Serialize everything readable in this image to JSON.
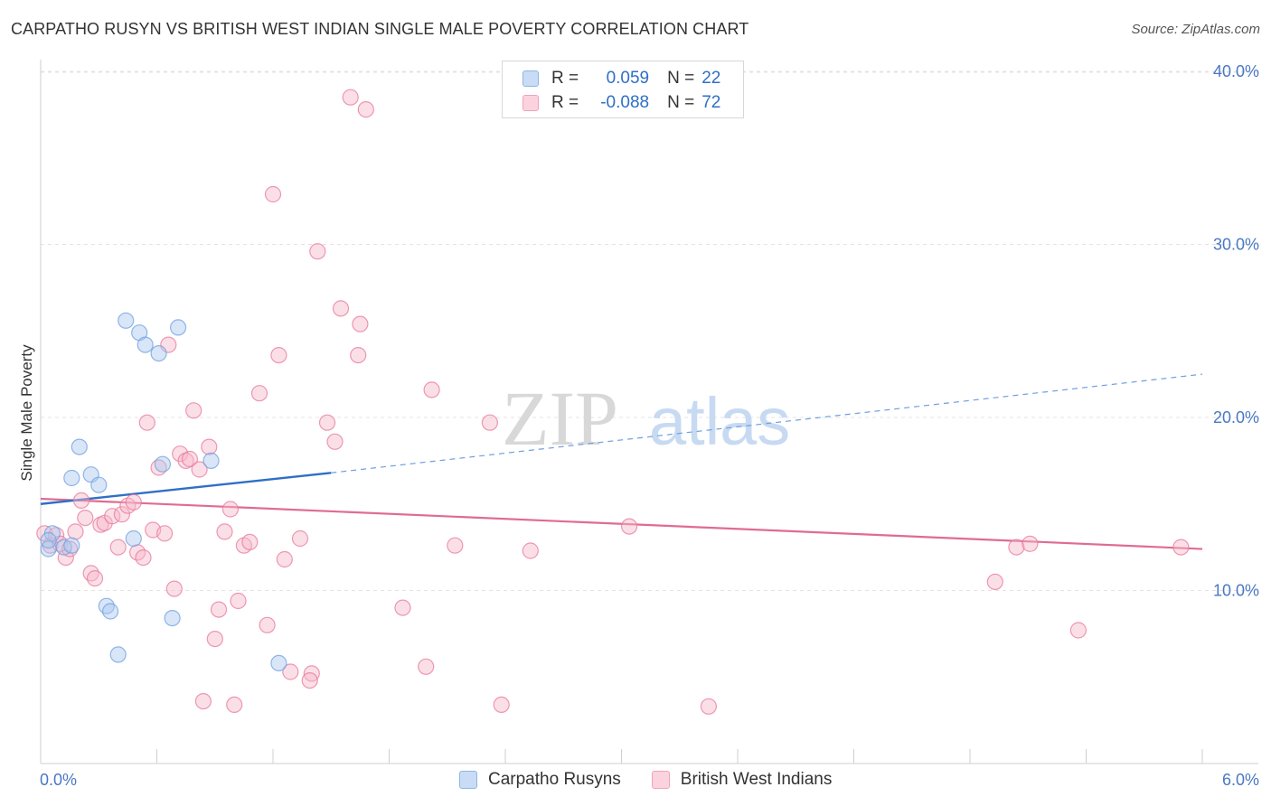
{
  "title": "CARPATHO RUSYN VS BRITISH WEST INDIAN SINGLE MALE POVERTY CORRELATION CHART",
  "source": "Source: ZipAtlas.com",
  "watermark": {
    "zip": "ZIP",
    "atlas": "atlas"
  },
  "legend": {
    "rows": [
      {
        "r_label": "R =",
        "r_value": "0.059",
        "n_label": "N =",
        "n_value": "22",
        "color": "#a9c8f0"
      },
      {
        "r_label": "R =",
        "r_value": "-0.088",
        "n_label": "N =",
        "n_value": "72",
        "color": "#f6b8ca"
      }
    ]
  },
  "bottom_legend": [
    {
      "label": "Carpatho Rusyns",
      "color": "#a9c8f0"
    },
    {
      "label": "British West Indians",
      "color": "#f6b8ca"
    }
  ],
  "chart_data": {
    "type": "scatter",
    "title": "CARPATHO RUSYN VS BRITISH WEST INDIAN SINGLE MALE POVERTY CORRELATION CHART",
    "xlabel": "",
    "ylabel": "Single Male Poverty",
    "xlim": [
      0.0,
      6.0
    ],
    "ylim": [
      0.0,
      40.0
    ],
    "x_tick_labels": [
      "0.0%",
      "6.0%"
    ],
    "y_ticks": [
      10,
      20,
      30,
      40
    ],
    "y_tick_labels": [
      "10.0%",
      "20.0%",
      "30.0%",
      "40.0%"
    ],
    "grid": "horizontal dashed",
    "legend_position": "top-center",
    "series": [
      {
        "name": "Carpatho Rusyns",
        "color": "#6f9fe0",
        "fill": "#a9c8f0",
        "trend": {
          "x": [
            0.0,
            1.5
          ],
          "y": [
            15.0,
            16.8
          ],
          "dashed_extension": {
            "x": [
              1.5,
              6.0
            ],
            "y": [
              16.8,
              22.5
            ]
          }
        },
        "points": [
          [
            0.04,
            12.4
          ],
          [
            0.06,
            13.3
          ],
          [
            0.12,
            12.5
          ],
          [
            0.16,
            12.6
          ],
          [
            0.2,
            18.3
          ],
          [
            0.16,
            16.5
          ],
          [
            0.26,
            16.7
          ],
          [
            0.3,
            16.1
          ],
          [
            0.44,
            25.6
          ],
          [
            0.51,
            24.9
          ],
          [
            0.54,
            24.2
          ],
          [
            0.61,
            23.7
          ],
          [
            0.71,
            25.2
          ],
          [
            0.63,
            17.3
          ],
          [
            0.88,
            17.5
          ],
          [
            0.48,
            13.0
          ],
          [
            0.34,
            9.1
          ],
          [
            0.36,
            8.8
          ],
          [
            0.68,
            8.4
          ],
          [
            0.4,
            6.3
          ],
          [
            1.23,
            5.8
          ],
          [
            0.04,
            12.9
          ]
        ]
      },
      {
        "name": "British West Indians",
        "color": "#e8789c",
        "fill": "#f6b8ca",
        "trend": {
          "x": [
            0.0,
            6.0
          ],
          "y": [
            15.3,
            12.4
          ]
        },
        "points": [
          [
            0.02,
            13.3
          ],
          [
            0.05,
            12.6
          ],
          [
            0.08,
            13.2
          ],
          [
            0.1,
            12.7
          ],
          [
            0.13,
            11.9
          ],
          [
            0.15,
            12.4
          ],
          [
            0.18,
            13.4
          ],
          [
            0.21,
            15.2
          ],
          [
            0.23,
            14.2
          ],
          [
            0.26,
            11.0
          ],
          [
            0.28,
            10.7
          ],
          [
            0.31,
            13.8
          ],
          [
            0.33,
            13.9
          ],
          [
            0.37,
            14.3
          ],
          [
            0.4,
            12.5
          ],
          [
            0.42,
            14.4
          ],
          [
            0.45,
            14.9
          ],
          [
            0.48,
            15.1
          ],
          [
            0.5,
            12.2
          ],
          [
            0.53,
            11.9
          ],
          [
            0.55,
            19.7
          ],
          [
            0.58,
            13.5
          ],
          [
            0.61,
            17.1
          ],
          [
            0.64,
            13.3
          ],
          [
            0.66,
            24.2
          ],
          [
            0.69,
            10.1
          ],
          [
            0.72,
            17.9
          ],
          [
            0.75,
            17.5
          ],
          [
            0.77,
            17.6
          ],
          [
            0.79,
            20.4
          ],
          [
            0.82,
            17.0
          ],
          [
            0.84,
            3.6
          ],
          [
            0.87,
            18.3
          ],
          [
            0.9,
            7.2
          ],
          [
            0.92,
            8.9
          ],
          [
            0.95,
            13.4
          ],
          [
            0.98,
            14.7
          ],
          [
            1.0,
            3.4
          ],
          [
            1.02,
            9.4
          ],
          [
            1.05,
            12.6
          ],
          [
            1.08,
            12.8
          ],
          [
            1.13,
            21.4
          ],
          [
            1.17,
            8.0
          ],
          [
            1.2,
            32.9
          ],
          [
            1.23,
            23.6
          ],
          [
            1.26,
            11.8
          ],
          [
            1.29,
            5.3
          ],
          [
            1.34,
            13.0
          ],
          [
            1.4,
            5.2
          ],
          [
            1.39,
            4.8
          ],
          [
            1.43,
            29.6
          ],
          [
            1.48,
            19.7
          ],
          [
            1.52,
            18.6
          ],
          [
            1.55,
            26.3
          ],
          [
            1.6,
            38.5
          ],
          [
            1.64,
            23.6
          ],
          [
            1.65,
            25.4
          ],
          [
            1.68,
            37.8
          ],
          [
            1.87,
            9.0
          ],
          [
            1.99,
            5.6
          ],
          [
            2.02,
            21.6
          ],
          [
            2.14,
            12.6
          ],
          [
            2.32,
            19.7
          ],
          [
            2.38,
            3.4
          ],
          [
            2.53,
            12.3
          ],
          [
            3.04,
            13.7
          ],
          [
            3.45,
            3.3
          ],
          [
            4.93,
            10.5
          ],
          [
            5.04,
            12.5
          ],
          [
            5.11,
            12.7
          ],
          [
            5.36,
            7.7
          ],
          [
            5.89,
            12.5
          ]
        ]
      }
    ]
  }
}
